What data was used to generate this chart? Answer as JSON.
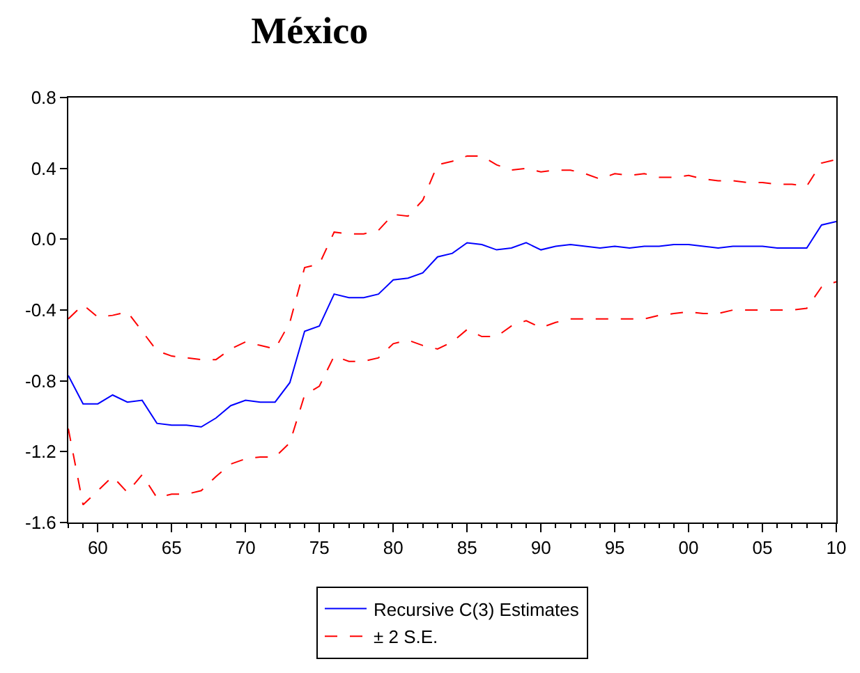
{
  "chart_data": {
    "type": "line",
    "title": "México",
    "x": [
      1958,
      1959,
      1960,
      1961,
      1962,
      1963,
      1964,
      1965,
      1966,
      1967,
      1968,
      1969,
      1970,
      1971,
      1972,
      1973,
      1974,
      1975,
      1976,
      1977,
      1978,
      1979,
      1980,
      1981,
      1982,
      1983,
      1984,
      1985,
      1986,
      1987,
      1988,
      1989,
      1990,
      1991,
      1992,
      1993,
      1994,
      1995,
      1996,
      1997,
      1998,
      1999,
      2000,
      2001,
      2002,
      2003,
      2004,
      2005,
      2006,
      2007,
      2008,
      2009,
      2010
    ],
    "series": [
      {
        "name": "Recursive C(3) Estimates",
        "color": "#0000ff",
        "line_style": "solid",
        "values": [
          -0.77,
          -0.93,
          -0.93,
          -0.88,
          -0.92,
          -0.91,
          -1.04,
          -1.05,
          -1.05,
          -1.06,
          -1.01,
          -0.94,
          -0.91,
          -0.92,
          -0.92,
          -0.81,
          -0.52,
          -0.49,
          -0.31,
          -0.33,
          -0.33,
          -0.31,
          -0.23,
          -0.22,
          -0.19,
          -0.1,
          -0.08,
          -0.02,
          -0.03,
          -0.06,
          -0.05,
          -0.02,
          -0.06,
          -0.04,
          -0.03,
          -0.04,
          -0.05,
          -0.04,
          -0.05,
          -0.04,
          -0.04,
          -0.03,
          -0.03,
          -0.04,
          -0.05,
          -0.04,
          -0.04,
          -0.04,
          -0.05,
          -0.05,
          -0.05,
          0.08,
          0.1
        ]
      },
      {
        "name": "± 2 S.E.",
        "color": "#ff0000",
        "line_style": "dashed",
        "values": [
          -0.45,
          -0.37,
          -0.44,
          -0.43,
          -0.41,
          -0.52,
          -0.63,
          -0.66,
          -0.67,
          -0.68,
          -0.68,
          -0.62,
          -0.58,
          -0.6,
          -0.62,
          -0.47,
          -0.16,
          -0.14,
          0.04,
          0.03,
          0.03,
          0.05,
          0.14,
          0.13,
          0.22,
          0.42,
          0.44,
          0.47,
          0.47,
          0.42,
          0.39,
          0.4,
          0.38,
          0.39,
          0.39,
          0.37,
          0.34,
          0.37,
          0.36,
          0.37,
          0.35,
          0.35,
          0.36,
          0.34,
          0.33,
          0.33,
          0.32,
          0.32,
          0.31,
          0.31,
          0.3,
          0.43,
          0.45
        ]
      },
      {
        "color": "#ff0000",
        "line_style": "dashed",
        "values": [
          -1.07,
          -1.5,
          -1.42,
          -1.34,
          -1.43,
          -1.33,
          -1.46,
          -1.44,
          -1.44,
          -1.42,
          -1.34,
          -1.27,
          -1.24,
          -1.23,
          -1.23,
          -1.15,
          -0.88,
          -0.83,
          -0.66,
          -0.69,
          -0.69,
          -0.67,
          -0.59,
          -0.57,
          -0.6,
          -0.62,
          -0.58,
          -0.51,
          -0.55,
          -0.55,
          -0.49,
          -0.46,
          -0.5,
          -0.47,
          -0.45,
          -0.45,
          -0.45,
          -0.45,
          -0.45,
          -0.45,
          -0.43,
          -0.42,
          -0.41,
          -0.42,
          -0.42,
          -0.4,
          -0.4,
          -0.4,
          -0.4,
          -0.4,
          -0.39,
          -0.27,
          -0.24
        ]
      }
    ],
    "xlim": [
      1958,
      2010
    ],
    "xticks": [
      {
        "value": 1960,
        "label": "60"
      },
      {
        "value": 1965,
        "label": "65"
      },
      {
        "value": 1970,
        "label": "70"
      },
      {
        "value": 1975,
        "label": "75"
      },
      {
        "value": 1980,
        "label": "80"
      },
      {
        "value": 1985,
        "label": "85"
      },
      {
        "value": 1990,
        "label": "90"
      },
      {
        "value": 1995,
        "label": "95"
      },
      {
        "value": 2000,
        "label": "00"
      },
      {
        "value": 2005,
        "label": "05"
      },
      {
        "value": 2010,
        "label": "10"
      }
    ],
    "ylim": [
      -1.6,
      0.8
    ],
    "yticks": [
      {
        "value": -1.6,
        "label": "-1.6"
      },
      {
        "value": -1.2,
        "label": "-1.2"
      },
      {
        "value": -0.8,
        "label": "-0.8"
      },
      {
        "value": -0.4,
        "label": "-0.4"
      },
      {
        "value": 0,
        "label": "0.0"
      },
      {
        "value": 0.4,
        "label": "0.4"
      },
      {
        "value": 0.8,
        "label": "0.8"
      }
    ],
    "grid": false,
    "legend": "bottom",
    "marker": "none"
  }
}
